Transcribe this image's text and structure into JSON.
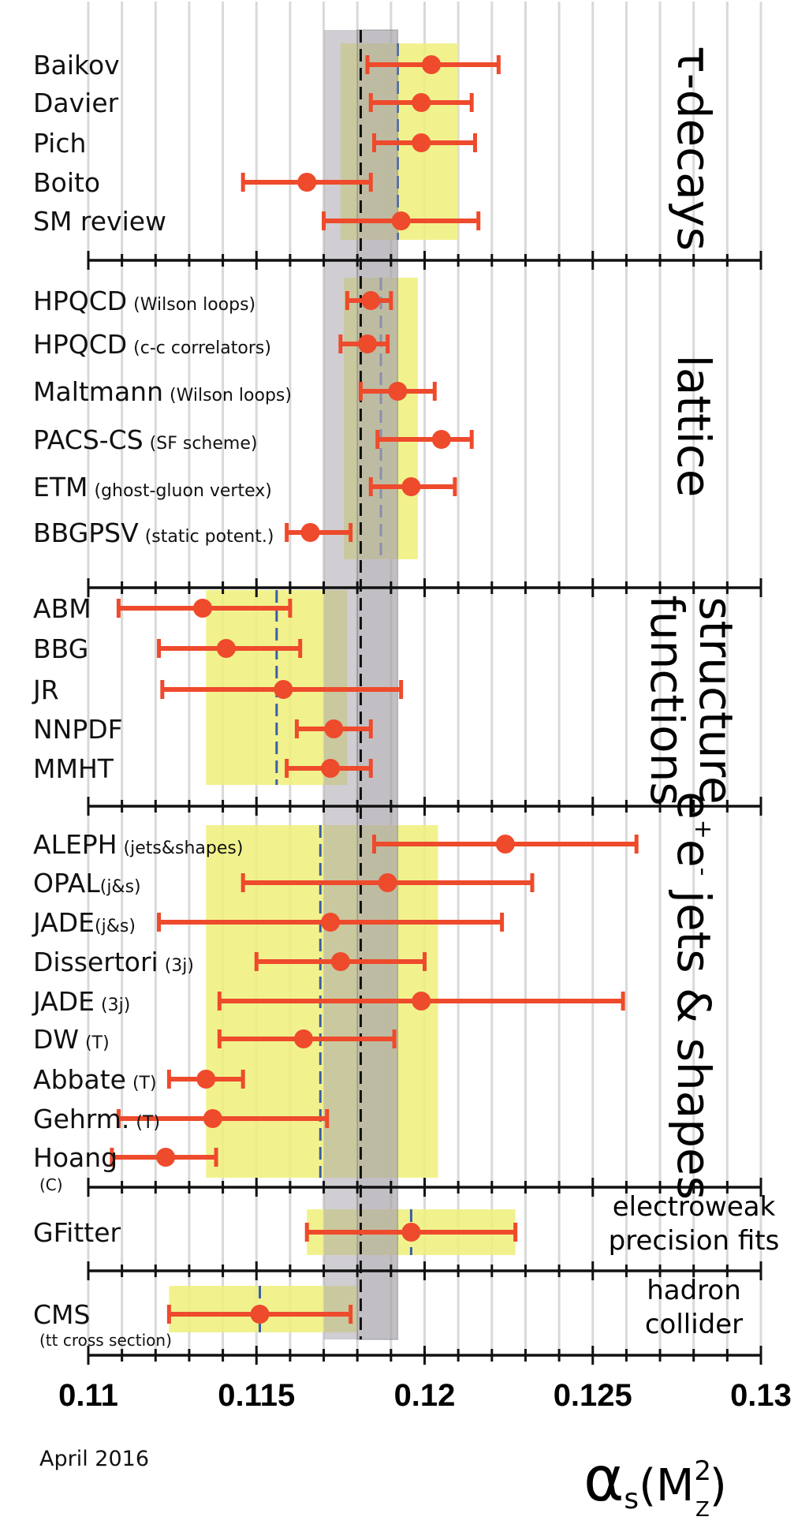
{
  "chart_data": {
    "type": "scatter",
    "title": "",
    "xlabel_main": "α",
    "xlabel_sub": "s",
    "xlabel_arg": "(M",
    "xlabel_arg_sup": "2",
    "xlabel_arg_sub": "Z",
    "xlabel_close": ")",
    "date": "April 2016",
    "xlim": [
      0.11,
      0.13
    ],
    "ticks": [
      "0.11",
      "0.115",
      "0.12",
      "0.125",
      "0.13"
    ],
    "world_average": {
      "value": 0.1181,
      "band": [
        0.117,
        0.1192
      ],
      "inner": [
        0.118,
        0.1192
      ]
    },
    "groups": [
      {
        "name": "tau-decays",
        "title_lines": [
          "τ-decays"
        ],
        "orientation": "vertical",
        "band": [
          0.1175,
          0.121
        ],
        "dash": 0.1192,
        "points": [
          {
            "label": "Baikov",
            "note": "",
            "value": 0.1202,
            "lo": 0.1183,
            "hi": 0.1222
          },
          {
            "label": "Davier",
            "note": "",
            "value": 0.1199,
            "lo": 0.1184,
            "hi": 0.1214
          },
          {
            "label": "Pich",
            "note": "",
            "value": 0.1199,
            "lo": 0.1185,
            "hi": 0.1215
          },
          {
            "label": "Boito",
            "note": "",
            "value": 0.1165,
            "lo": 0.1146,
            "hi": 0.1184
          },
          {
            "label": "SM review",
            "note": "",
            "value": 0.1193,
            "lo": 0.117,
            "hi": 0.1216
          }
        ]
      },
      {
        "name": "lattice",
        "title_lines": [
          "lattice"
        ],
        "orientation": "vertical",
        "band": [
          0.1176,
          0.1198
        ],
        "dash": 0.1187,
        "points": [
          {
            "label": "HPQCD",
            "note": "(Wilson loops)",
            "value": 0.1184,
            "lo": 0.1177,
            "hi": 0.119
          },
          {
            "label": "HPQCD",
            "note": "(c-c correlators)",
            "value": 0.1183,
            "lo": 0.1175,
            "hi": 0.1189
          },
          {
            "label": "Maltmann",
            "note": "(Wilson loops)",
            "value": 0.1192,
            "lo": 0.1181,
            "hi": 0.1203
          },
          {
            "label": "PACS-CS",
            "note": "(SF scheme)",
            "value": 0.1205,
            "lo": 0.1186,
            "hi": 0.1214
          },
          {
            "label": "ETM",
            "note": "(ghost-gluon vertex)",
            "value": 0.1196,
            "lo": 0.1184,
            "hi": 0.1209
          },
          {
            "label": "BBGPSV",
            "note": "(static potent.)",
            "value": 0.1166,
            "lo": 0.1159,
            "hi": 0.1178
          }
        ]
      },
      {
        "name": "structure-functions",
        "title_lines": [
          "structure",
          "functions"
        ],
        "orientation": "vertical",
        "band": [
          0.1135,
          0.1177
        ],
        "dash": 0.1156,
        "points": [
          {
            "label": "ABM",
            "note": "",
            "value": 0.1134,
            "lo": 0.1109,
            "hi": 0.116
          },
          {
            "label": "BBG",
            "note": "",
            "value": 0.1141,
            "lo": 0.1121,
            "hi": 0.1163
          },
          {
            "label": "JR",
            "note": "",
            "value": 0.1158,
            "lo": 0.1122,
            "hi": 0.1193
          },
          {
            "label": "NNPDF",
            "note": "",
            "value": 0.1173,
            "lo": 0.1162,
            "hi": 0.1184
          },
          {
            "label": "MMHT",
            "note": "",
            "value": 0.1172,
            "lo": 0.1159,
            "hi": 0.1184
          }
        ]
      },
      {
        "name": "ee-jets-shapes",
        "title_lines": [
          "e+e- jets & shapes"
        ],
        "orientation": "vertical",
        "band": [
          0.1135,
          0.1204
        ],
        "dash": 0.1169,
        "points": [
          {
            "label": "ALEPH",
            "note": "(jets&shapes)",
            "value": 0.1224,
            "lo": 0.1185,
            "hi": 0.1263
          },
          {
            "label": "OPAL",
            "note": "(j&s)",
            "value": 0.1189,
            "lo": 0.1146,
            "hi": 0.1232
          },
          {
            "label": "JADE",
            "note": "(j&s)",
            "value": 0.1172,
            "lo": 0.1121,
            "hi": 0.1223
          },
          {
            "label": "Dissertori",
            "note": "(3j)",
            "value": 0.1175,
            "lo": 0.115,
            "hi": 0.12
          },
          {
            "label": "JADE",
            "note": "(3j)",
            "value": 0.1199,
            "lo": 0.1139,
            "hi": 0.1259
          },
          {
            "label": "DW",
            "note": "(T)",
            "value": 0.1164,
            "lo": 0.1139,
            "hi": 0.1191
          },
          {
            "label": "Abbate",
            "note": "(T)",
            "value": 0.1135,
            "lo": 0.1124,
            "hi": 0.1146
          },
          {
            "label": "Gehrm.",
            "note": "(T)",
            "value": 0.1137,
            "lo": 0.1109,
            "hi": 0.1171
          },
          {
            "label": "Hoang",
            "note": "(C)",
            "value": 0.1123,
            "lo": 0.1107,
            "hi": 0.1138
          }
        ]
      },
      {
        "name": "electroweak",
        "title_lines": [
          "electroweak",
          "precision fits"
        ],
        "orientation": "horizontal",
        "band": [
          0.1165,
          0.1227
        ],
        "dash": 0.1196,
        "points": [
          {
            "label": "GFitter",
            "note": "",
            "value": 0.1196,
            "lo": 0.1165,
            "hi": 0.1227
          }
        ]
      },
      {
        "name": "hadron-collider",
        "title_lines": [
          "hadron",
          "collider"
        ],
        "orientation": "horizontal",
        "band": [
          0.1124,
          0.118
        ],
        "dash": 0.1151,
        "points": [
          {
            "label": "CMS",
            "note": "(tt cross section)",
            "value": 0.1151,
            "lo": 0.1124,
            "hi": 0.1178
          }
        ]
      }
    ],
    "colors": {
      "point": "#ee4a2c",
      "group_band": "#eef07a",
      "average_band": "#a9a5ad",
      "grid": "#d9d9d9",
      "dash": "#3b5ea6",
      "axis": "#111111"
    }
  }
}
